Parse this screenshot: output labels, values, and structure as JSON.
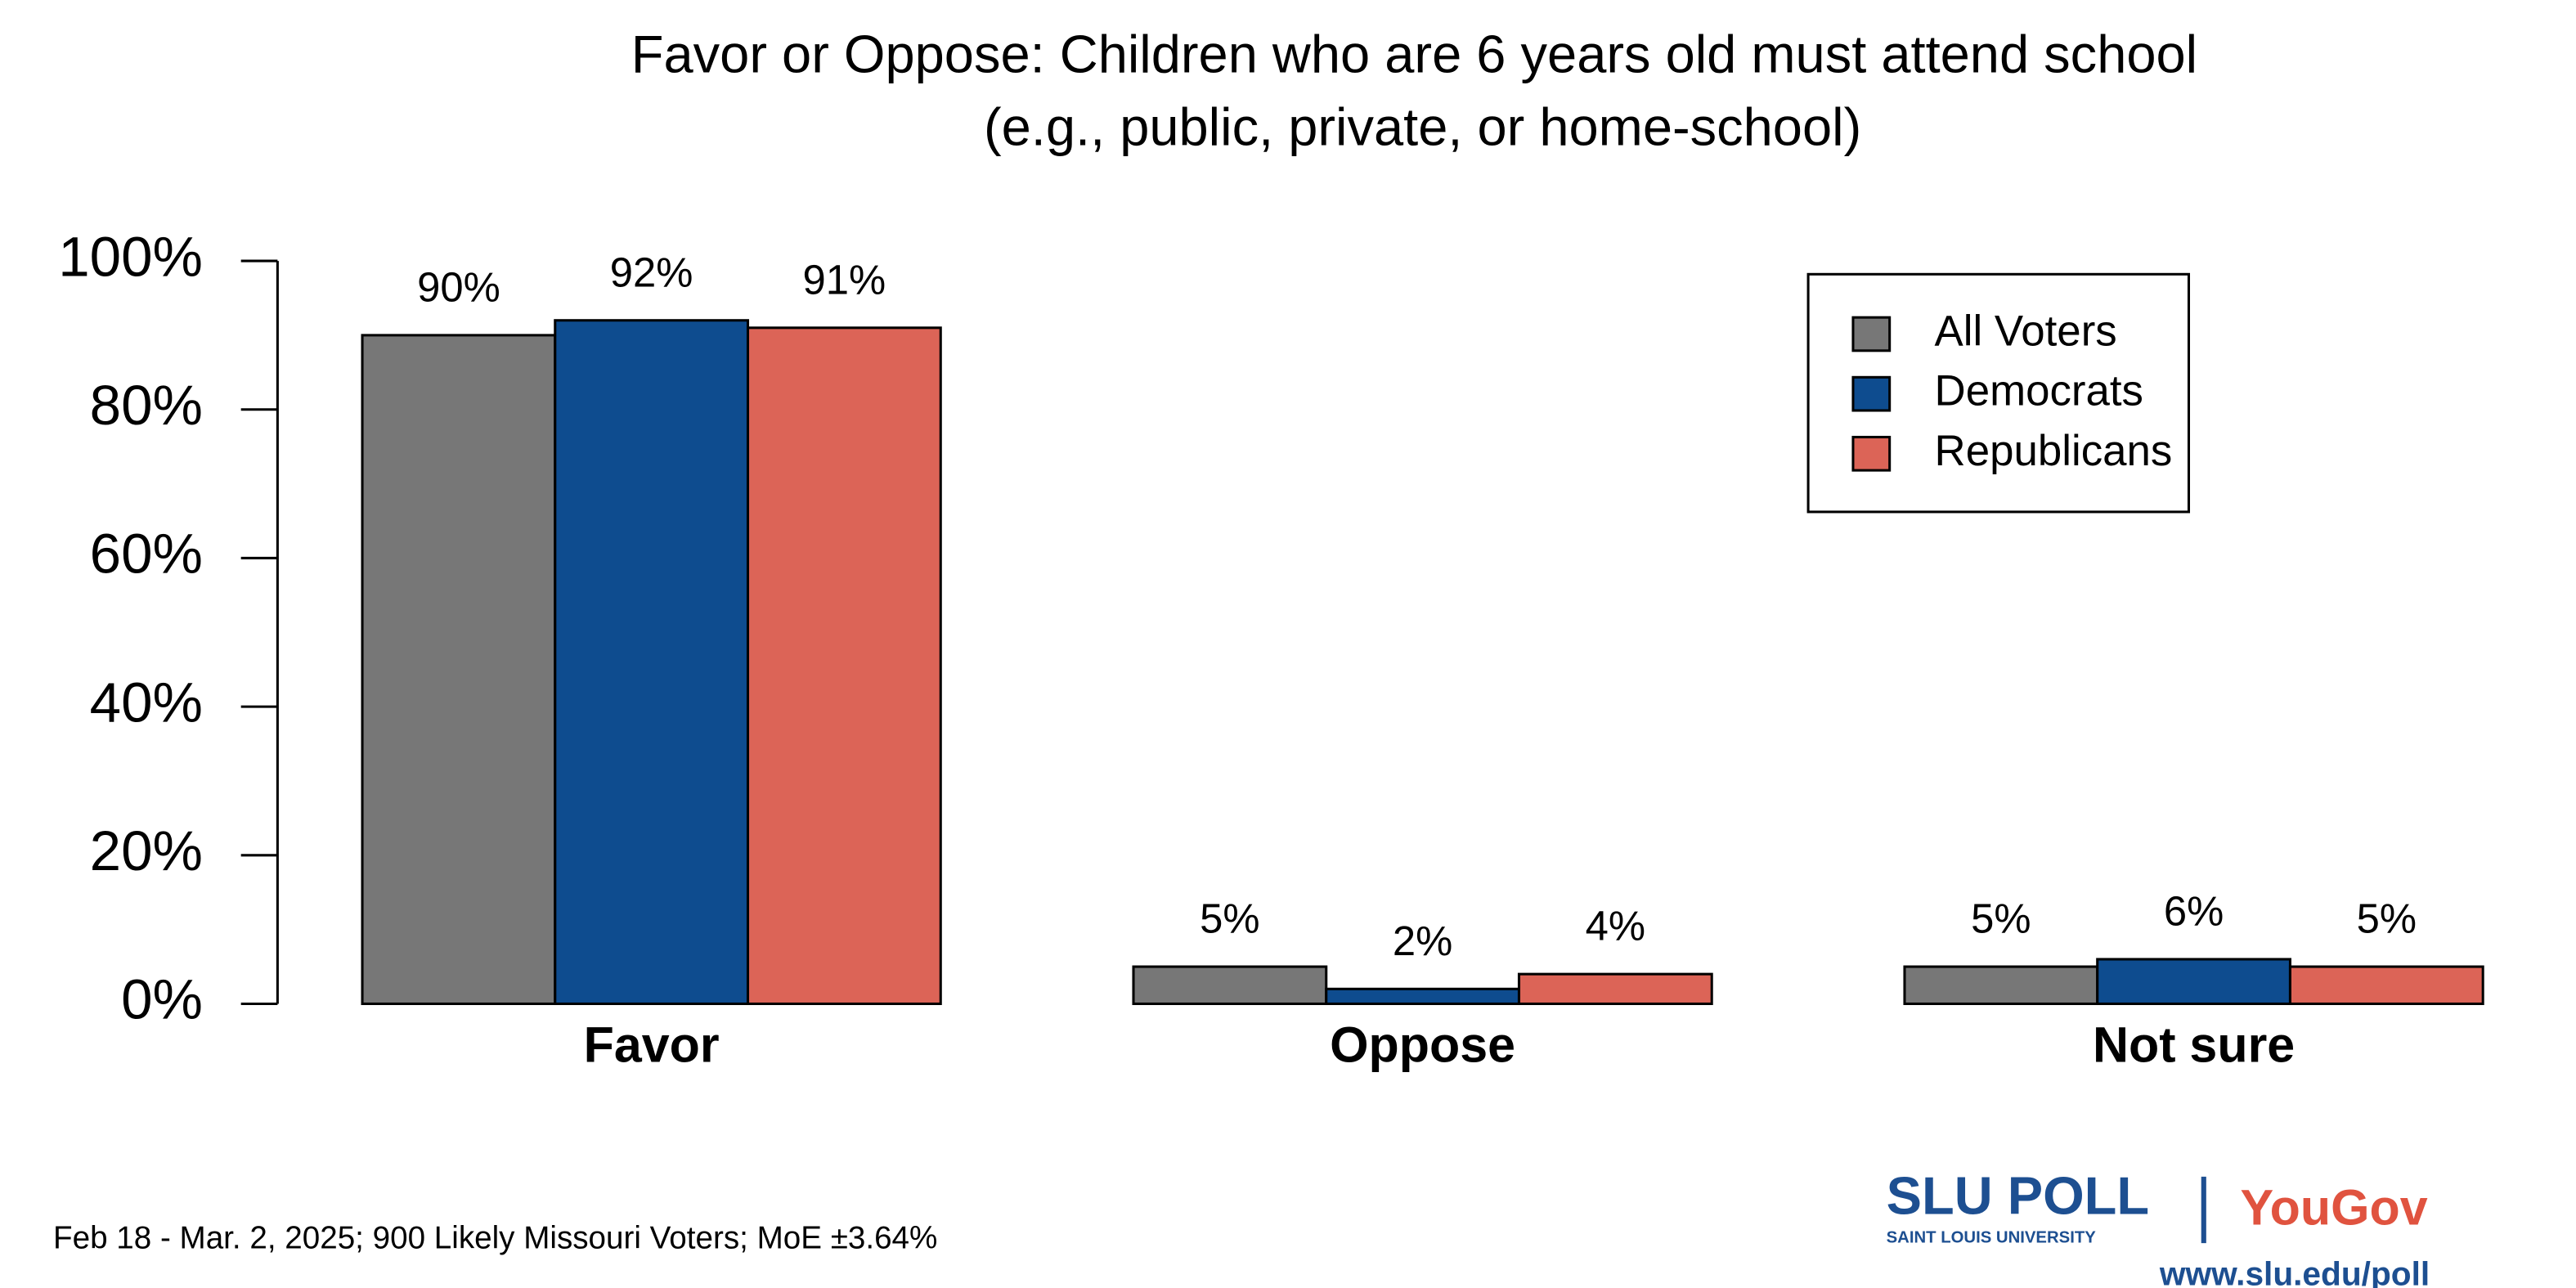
{
  "chart_data": {
    "type": "bar",
    "title": [
      "Favor or Oppose: Children who are 6 years old must attend school",
      "(e.g., public, private, or home-school)"
    ],
    "categories": [
      "Favor",
      "Oppose",
      "Not sure"
    ],
    "series": [
      {
        "name": "All Voters",
        "color": "#777777",
        "values": [
          90,
          5,
          5
        ],
        "value_labels": [
          "90%",
          "5%",
          "5%"
        ]
      },
      {
        "name": "Democrats",
        "color": "#0e4c8f",
        "values": [
          92,
          2,
          6
        ],
        "value_labels": [
          "92%",
          "2%",
          "6%"
        ]
      },
      {
        "name": "Republicans",
        "color": "#dc6457",
        "values": [
          91,
          4,
          5
        ],
        "value_labels": [
          "91%",
          "4%",
          "5%"
        ]
      }
    ],
    "ylim": [
      0,
      100
    ],
    "yticks": [
      {
        "value": 0,
        "label": "0%"
      },
      {
        "value": 20,
        "label": "20%"
      },
      {
        "value": 40,
        "label": "40%"
      },
      {
        "value": 60,
        "label": "60%"
      },
      {
        "value": 80,
        "label": "80%"
      },
      {
        "value": 100,
        "label": "100%"
      }
    ],
    "legend": "top-right"
  },
  "footnote": "Feb 18 - Mar. 2, 2025; 900 Likely Missouri Voters; MoE ±3.64%",
  "logo": {
    "slu": "SLU POLL",
    "university": "SAINT LOUIS UNIVERSITY",
    "yougov": "YouGov",
    "url": "www.slu.edu/poll"
  }
}
